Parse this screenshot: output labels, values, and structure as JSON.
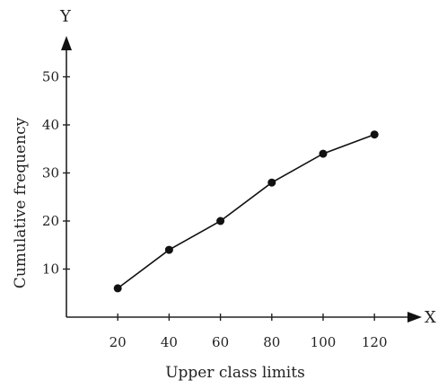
{
  "chart_data": {
    "type": "line",
    "x_axis_letter": "X",
    "y_axis_letter": "Y",
    "xlabel": "Upper class limits",
    "ylabel": "Cumulative frequency",
    "x_ticks": [
      "20",
      "40",
      "60",
      "80",
      "100",
      "120"
    ],
    "y_ticks": [
      "10",
      "20",
      "30",
      "40",
      "50"
    ],
    "xlim": [
      0,
      130
    ],
    "ylim": [
      0,
      55
    ],
    "grid": false,
    "series": [
      {
        "x": [
          20,
          40,
          60,
          80,
          100,
          120
        ],
        "y": [
          6,
          14,
          20,
          28,
          34,
          38
        ]
      }
    ],
    "colors": {
      "line": "#111111",
      "axis": "#222222"
    }
  }
}
